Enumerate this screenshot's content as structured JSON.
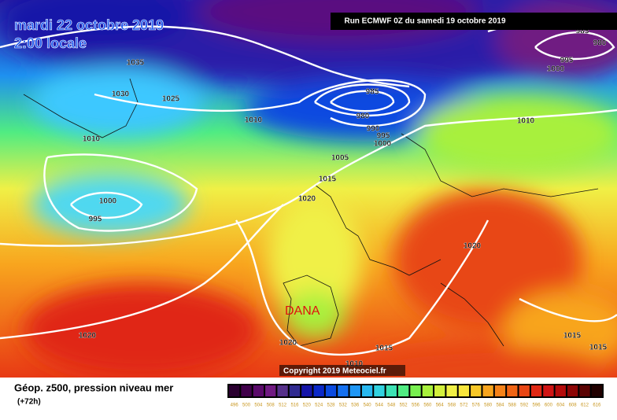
{
  "header": {
    "date": "mardi 22 octobre 2019",
    "time": "2:00 locale",
    "run": "Run ECMWF 0Z du samedi 19 octobre 2019"
  },
  "map": {
    "annotation": "DANA",
    "copyright": "Copyright 2019 Meteociel.fr",
    "isobar_labels": [
      1035,
      1030,
      1025,
      1010,
      1010,
      985,
      980,
      990,
      995,
      1000,
      1005,
      1015,
      1020,
      1000,
      995,
      1020,
      1020,
      1020,
      1015,
      1010,
      1015,
      1015,
      1010,
      985,
      980,
      995,
      1000
    ]
  },
  "footer": {
    "title": "Géop. z500, pression niveau mer",
    "lead": "(+72h)",
    "scale": {
      "labels": [
        496,
        500,
        504,
        508,
        512,
        516,
        520,
        524,
        528,
        532,
        536,
        540,
        544,
        548,
        552,
        556,
        560,
        564,
        568,
        572,
        576,
        580,
        584,
        588,
        592,
        596,
        600,
        604,
        608,
        612,
        616
      ],
      "colors": [
        "#2a0030",
        "#40004a",
        "#5a0a6a",
        "#701a82",
        "#56308a",
        "#302a90",
        "#1414a8",
        "#0a28c8",
        "#0a4ae0",
        "#1470f0",
        "#1e96f5",
        "#28b8f0",
        "#32d2e0",
        "#3ce2b4",
        "#50ec82",
        "#78f050",
        "#a8f03c",
        "#d2f03c",
        "#f0f046",
        "#f8e63c",
        "#f8c828",
        "#f8a51e",
        "#f58219",
        "#f06414",
        "#e84614",
        "#e02814",
        "#d01414",
        "#b40a0a",
        "#8c0505",
        "#5a0202",
        "#200000"
      ]
    }
  }
}
